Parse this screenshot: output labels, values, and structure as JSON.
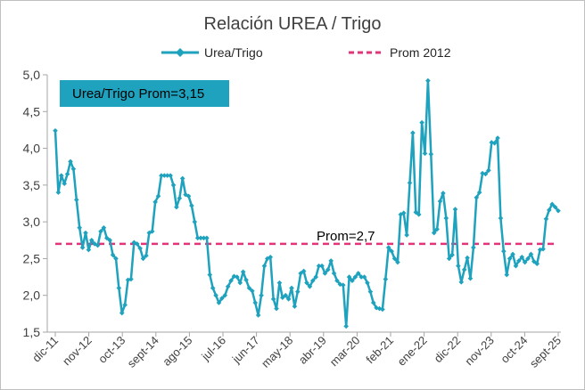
{
  "chart_data": {
    "type": "line",
    "title": "Relación UREA / Trigo",
    "xlabel": "",
    "ylabel": "",
    "ylim": [
      1.5,
      5.0
    ],
    "ytick_labels": [
      "1,5",
      "2,0",
      "2,5",
      "3,0",
      "3,5",
      "4,0",
      "4,5",
      "5,0"
    ],
    "x_tick_labels": [
      "dic-11",
      "nov-12",
      "oct-13",
      "sept-14",
      "ago-15",
      "jul-16",
      "jun-17",
      "may-18",
      "abr-19",
      "mar-20",
      "feb-21",
      "ene-22",
      "dic-22",
      "nov-23",
      "oct-24",
      "sept-25"
    ],
    "grid": false,
    "legend_position": "top",
    "series": [
      {
        "name": "Urea/Trigo",
        "color": "#1ea2be",
        "marker": "diamond",
        "values": [
          4.24,
          3.4,
          3.63,
          3.52,
          3.65,
          3.82,
          3.72,
          3.3,
          2.92,
          2.65,
          2.85,
          2.62,
          2.75,
          2.7,
          2.68,
          2.87,
          2.92,
          2.78,
          2.75,
          2.55,
          2.5,
          2.1,
          1.76,
          1.87,
          2.21,
          2.22,
          2.72,
          2.7,
          2.64,
          2.5,
          2.54,
          2.85,
          2.87,
          3.27,
          3.35,
          3.63,
          3.63,
          3.63,
          3.63,
          3.5,
          3.2,
          3.32,
          3.59,
          3.37,
          3.35,
          3.22,
          3.0,
          2.78,
          2.78,
          2.78,
          2.78,
          2.28,
          2.1,
          2.0,
          1.9,
          1.96,
          2.0,
          2.12,
          2.2,
          2.26,
          2.25,
          2.17,
          2.32,
          2.21,
          2.1,
          2.06,
          1.9,
          1.73,
          2.0,
          2.4,
          2.5,
          2.52,
          1.95,
          1.82,
          2.17,
          1.97,
          2.0,
          1.95,
          2.1,
          1.85,
          2.05,
          2.3,
          2.33,
          2.17,
          2.12,
          2.2,
          2.25,
          2.4,
          2.4,
          2.3,
          2.35,
          2.47,
          2.3,
          2.2,
          2.15,
          2.14,
          1.58,
          2.25,
          2.2,
          2.25,
          2.3,
          2.25,
          2.25,
          2.17,
          2.05,
          1.9,
          1.83,
          1.82,
          1.81,
          2.22,
          2.65,
          2.6,
          2.5,
          2.45,
          3.1,
          3.12,
          2.82,
          3.53,
          4.21,
          3.13,
          3.1,
          4.35,
          3.93,
          4.92,
          3.92,
          2.85,
          2.9,
          3.28,
          3.39,
          3.05,
          2.5,
          2.55,
          3.17,
          2.4,
          2.18,
          2.35,
          2.51,
          2.23,
          2.65,
          3.33,
          3.4,
          3.66,
          3.65,
          3.7,
          4.08,
          4.07,
          4.14,
          3.05,
          2.6,
          2.28,
          2.5,
          2.56,
          2.4,
          2.47,
          2.52,
          2.45,
          2.5,
          2.56,
          2.46,
          2.43,
          2.62,
          2.63,
          3.04,
          3.16,
          3.24,
          3.2,
          3.15
        ]
      },
      {
        "name": "Prom 2012",
        "color": "#e5337a",
        "style": "dashed",
        "values": [
          2.7,
          2.7
        ]
      }
    ],
    "annotations": {
      "prom_label": "Prom=2,7",
      "box_label": "Urea/Trigo Prom=3,15",
      "box_color": "#1ea2be"
    }
  }
}
